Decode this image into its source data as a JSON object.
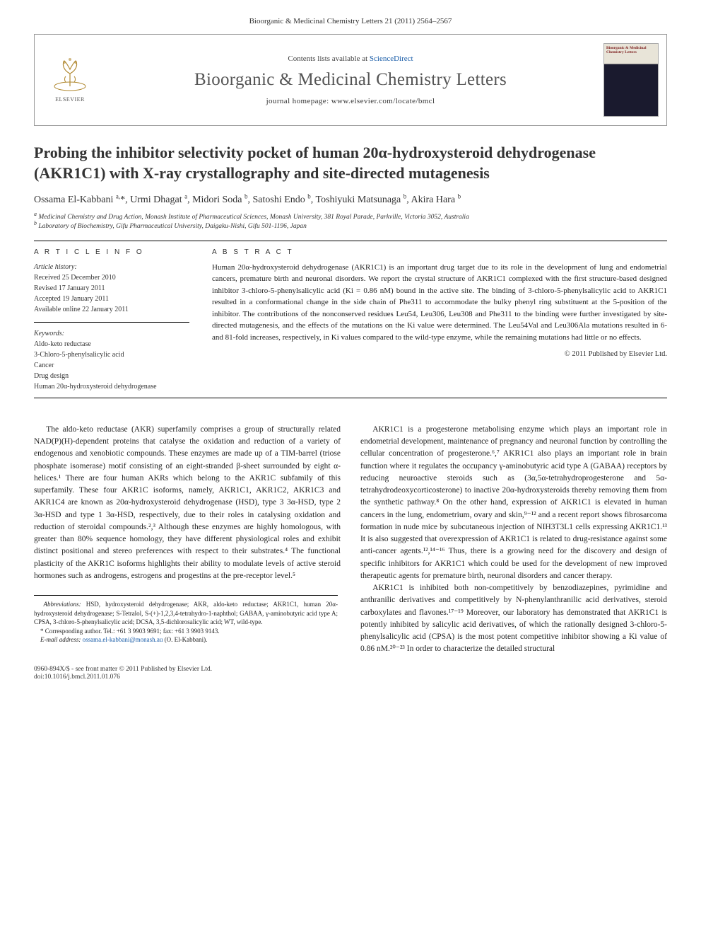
{
  "header": {
    "citation": "Bioorganic & Medicinal Chemistry Letters 21 (2011) 2564–2567"
  },
  "masthead": {
    "contents_prefix": "Contents lists available at ",
    "contents_link": "ScienceDirect",
    "journal_name": "Bioorganic & Medicinal Chemistry Letters",
    "homepage_label": "journal homepage: ",
    "homepage_url": "www.elsevier.com/locate/bmcl",
    "publisher_logo_label": "ELSEVIER",
    "cover_title": "Bioorganic & Medicinal Chemistry Letters"
  },
  "article": {
    "title": "Probing the inhibitor selectivity pocket of human 20α-hydroxysteroid dehydrogenase (AKR1C1) with X-ray crystallography and site-directed mutagenesis",
    "authors_html": "Ossama El-Kabbani <sup>a,</sup>*, Urmi Dhagat <sup>a</sup>, Midori Soda <sup>b</sup>, Satoshi Endo <sup>b</sup>, Toshiyuki Matsunaga <sup>b</sup>, Akira Hara <sup>b</sup>",
    "affiliations": [
      "a Medicinal Chemistry and Drug Action, Monash Institute of Pharmaceutical Sciences, Monash University, 381 Royal Parade, Parkville, Victoria 3052, Australia",
      "b Laboratory of Biochemistry, Gifu Pharmaceutical University, Daigaku-Nishi, Gifu 501-1196, Japan"
    ]
  },
  "info": {
    "heading": "A R T I C L E   I N F O",
    "history_label": "Article history:",
    "history": [
      "Received 25 December 2010",
      "Revised 17 January 2011",
      "Accepted 19 January 2011",
      "Available online 22 January 2011"
    ],
    "keywords_label": "Keywords:",
    "keywords": [
      "Aldo-keto reductase",
      "3-Chloro-5-phenylsalicylic acid",
      "Cancer",
      "Drug design",
      "Human 20α-hydroxysteroid dehydrogenase"
    ]
  },
  "abstract": {
    "heading": "A B S T R A C T",
    "text": "Human 20α-hydroxysteroid dehydrogenase (AKR1C1) is an important drug target due to its role in the development of lung and endometrial cancers, premature birth and neuronal disorders. We report the crystal structure of AKR1C1 complexed with the first structure-based designed inhibitor 3-chloro-5-phenylsalicylic acid (Ki = 0.86 nM) bound in the active site. The binding of 3-chloro-5-phenylsalicylic acid to AKR1C1 resulted in a conformational change in the side chain of Phe311 to accommodate the bulky phenyl ring substituent at the 5-position of the inhibitor. The contributions of the nonconserved residues Leu54, Leu306, Leu308 and Phe311 to the binding were further investigated by site-directed mutagenesis, and the effects of the mutations on the Ki value were determined. The Leu54Val and Leu306Ala mutations resulted in 6- and 81-fold increases, respectively, in Ki values compared to the wild-type enzyme, while the remaining mutations had little or no effects.",
    "copyright": "© 2011 Published by Elsevier Ltd."
  },
  "body": {
    "p1": "The aldo-keto reductase (AKR) superfamily comprises a group of structurally related NAD(P)(H)-dependent proteins that catalyse the oxidation and reduction of a variety of endogenous and xenobiotic compounds. These enzymes are made up of a TIM-barrel (triose phosphate isomerase) motif consisting of an eight-stranded β-sheet surrounded by eight α-helices.¹ There are four human AKRs which belong to the AKR1C subfamily of this superfamily. These four AKR1C isoforms, namely, AKR1C1, AKR1C2, AKR1C3 and AKR1C4 are known as 20α-hydroxysteroid dehydrogenase (HSD), type 3 3α-HSD, type 2 3α-HSD and type 1 3α-HSD, respectively, due to their roles in catalysing oxidation and reduction of steroidal compounds.²,³ Although these enzymes are highly homologous, with greater than 80% sequence homology, they have different physiological roles and exhibit distinct positional and stereo preferences with respect to their substrates.⁴ The functional plasticity of the AKR1C isoforms highlights their ability to modulate levels of active steroid hormones such as androgens, estrogens and progestins at the pre-receptor level.⁵",
    "p2": "AKR1C1 is a progesterone metabolising enzyme which plays an important role in endometrial development, maintenance of pregnancy and neuronal function by controlling the cellular concentration of progesterone.⁶,⁷ AKR1C1 also plays an important role in brain function where it regulates the occupancy γ-aminobutyric acid type A (GABAA) receptors by reducing neuroactive steroids such as (3α,5α-tetrahydroprogesterone and 5α-tetrahydrodeoxycorticosterone) to inactive 20α-hydroxysteroids thereby removing them from the synthetic pathway.⁸ On the other hand, expression of AKR1C1 is elevated in human cancers in the lung, endometrium, ovary and skin,⁹⁻¹² and a recent report shows fibrosarcoma formation in nude mice by subcutaneous injection of NIH3T3L1 cells expressing AKR1C1.¹³ It is also suggested that overexpression of AKR1C1 is related to drug-resistance against some anti-cancer agents.¹²,¹⁴⁻¹⁶ Thus, there is a growing need for the discovery and design of specific inhibitors for AKR1C1 which could be used for the development of new improved therapeutic agents for premature birth, neuronal disorders and cancer therapy.",
    "p3": "AKR1C1 is inhibited both non-competitively by benzodiazepines, pyrimidine and anthranilic derivatives and competitively by N-phenylanthranilic acid derivatives, steroid carboxylates and flavones.¹⁷⁻¹⁹ Moreover, our laboratory has demonstrated that AKR1C1 is potently inhibited by salicylic acid derivatives, of which the rationally designed 3-chloro-5-phenylsalicylic acid (CPSA) is the most potent competitive inhibitor showing a Ki value of 0.86 nM.²⁰⁻²³ In order to characterize the detailed structural"
  },
  "footnotes": {
    "abbrev_label": "Abbreviations:",
    "abbrev": " HSD, hydroxysteroid dehydrogenase; AKR, aldo-keto reductase; AKR1C1, human 20α-hydroxysteroid dehydrogenase; S-Tetralol, S-(+)-1,2,3,4-tetrahydro-1-naphthol; GABAA, γ-aminobutyric acid type A; CPSA, 3-chloro-5-phenylsalicylic acid; DCSA, 3,5-dichlorosalicylic acid; WT, wild-type.",
    "corr": "* Corresponding author. Tel.: +61 3 9903 9691; fax: +61 3 9903 9143.",
    "email_label": "E-mail address: ",
    "email": "ossama.el-kabbani@monash.au",
    "email_suffix": " (O. El-Kabbani)."
  },
  "footer": {
    "issn": "0960-894X/$ - see front matter © 2011 Published by Elsevier Ltd.",
    "doi": "doi:10.1016/j.bmcl.2011.01.076"
  },
  "colors": {
    "link": "#1a5da8",
    "text": "#222222",
    "heading": "#333333",
    "rule": "#000000",
    "box_border": "#999999"
  }
}
